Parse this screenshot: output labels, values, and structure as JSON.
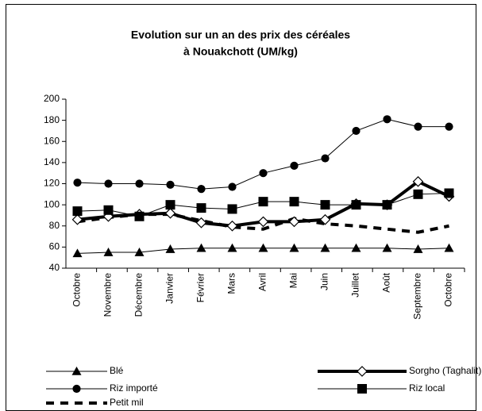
{
  "chart_data": {
    "type": "line",
    "title": [
      "Evolution sur un an des prix des céréales",
      "à Nouakchott  (UM/kg)"
    ],
    "categories": [
      "Octobre",
      "Novembre",
      "Décembre",
      "Janvier",
      "Février",
      "Mars",
      "Avril",
      "Mai",
      "Juin",
      "Juillet",
      "Août",
      "Septembre",
      "Octobre"
    ],
    "ylim": [
      40,
      200
    ],
    "yticks": [
      40,
      60,
      80,
      100,
      120,
      140,
      160,
      180,
      200
    ],
    "legend": "bottom",
    "series": [
      {
        "name": "Blé",
        "color": "#000000",
        "marker": "triangle",
        "width": 1,
        "dashed": false,
        "values": [
          54,
          55,
          55,
          58,
          59,
          59,
          59,
          59,
          59,
          59,
          59,
          58,
          59
        ]
      },
      {
        "name": "Sorgho (Taghalit)",
        "color": "#000000",
        "marker": "diamond",
        "width": 4,
        "dashed": false,
        "values": [
          86,
          89,
          91,
          92,
          83,
          80,
          84,
          84,
          86,
          101,
          100,
          122,
          108
        ]
      },
      {
        "name": "Riz importé",
        "color": "#000000",
        "marker": "circle",
        "width": 1,
        "dashed": false,
        "values": [
          121,
          120,
          120,
          119,
          115,
          117,
          130,
          137,
          144,
          170,
          181,
          174,
          174
        ]
      },
      {
        "name": "Riz local",
        "color": "#000000",
        "marker": "square",
        "width": 1,
        "dashed": false,
        "values": [
          94,
          95,
          89,
          100,
          97,
          96,
          103,
          103,
          100,
          100,
          100,
          110,
          111
        ]
      },
      {
        "name": "Petit mil",
        "color": "#000000",
        "marker": "none",
        "width": 4,
        "dashed": true,
        "values": [
          84,
          88,
          91,
          91,
          85,
          79,
          77,
          87,
          82,
          80,
          77,
          74,
          80
        ]
      }
    ]
  }
}
